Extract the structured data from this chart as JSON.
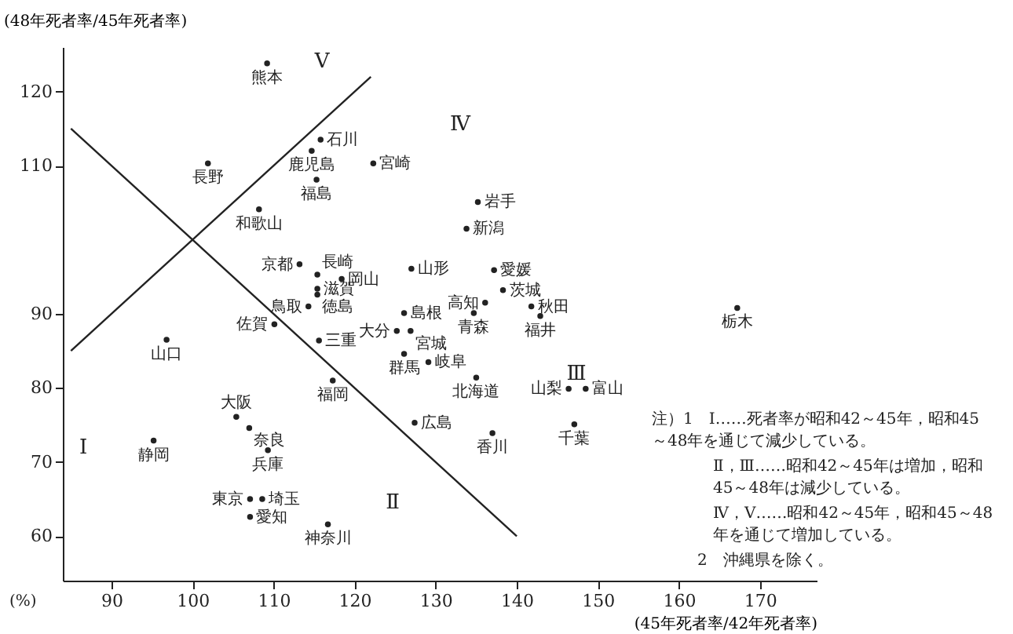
{
  "chart_data": {
    "type": "scatter",
    "xlabel": "(45年死者率/42年死者率)",
    "ylabel": "(48年死者率/45年死者率)",
    "xlim": [
      84,
      177
    ],
    "ylim": [
      54,
      126
    ],
    "xticks": [
      90,
      100,
      110,
      120,
      130,
      140,
      150,
      160,
      170
    ],
    "yticks": [
      60,
      70,
      80,
      90,
      110,
      120
    ],
    "marker": "circle",
    "color": "#222222",
    "grid": false,
    "annotations": [
      "(%)",
      "Ⅰ",
      "Ⅱ",
      "Ⅲ",
      "Ⅳ",
      "Ⅴ",
      "注）1　Ⅰ……死者率が昭和42～45年，昭和45\n～48年を通じて減少している。",
      "Ⅱ，Ⅲ……昭和42～45年は増加，昭和\n45～48年は減少している。",
      "Ⅳ，Ⅴ……昭和42～45年，昭和45～48\n年を通じて増加している。",
      "2　沖縄県を除く。"
    ],
    "series": [
      {
        "type": "line",
        "marker": "none",
        "color": "#222222",
        "x": [
          85,
          122
        ],
        "values": [
          85,
          122
        ]
      },
      {
        "type": "line",
        "marker": "none",
        "color": "#222222",
        "x": [
          85,
          140
        ],
        "values": [
          115,
          60
        ]
      },
      {
        "name": "熊本",
        "x": [
          109.2
        ],
        "values": [
          123.8
        ]
      },
      {
        "name": "石川",
        "x": [
          115.8
        ],
        "values": [
          113.5
        ]
      },
      {
        "name": "鹿児島",
        "x": [
          114.7
        ],
        "values": [
          112.0
        ]
      },
      {
        "name": "宮崎",
        "x": [
          122.3
        ],
        "values": [
          110.3
        ]
      },
      {
        "name": "福島",
        "x": [
          115.3
        ],
        "values": [
          108.1
        ]
      },
      {
        "name": "和歌山",
        "x": [
          108.2
        ],
        "values": [
          104.1
        ]
      },
      {
        "name": "長野",
        "x": [
          101.9
        ],
        "values": [
          110.3
        ]
      },
      {
        "name": "岩手",
        "x": [
          135.2
        ],
        "values": [
          105.1
        ]
      },
      {
        "name": "新潟",
        "x": [
          133.8
        ],
        "values": [
          101.5
        ]
      },
      {
        "name": "京都",
        "x": [
          113.2
        ],
        "values": [
          96.7
        ]
      },
      {
        "name": "長崎",
        "x": [
          115.4
        ],
        "values": [
          95.3
        ]
      },
      {
        "name": "岡山",
        "x": [
          118.4
        ],
        "values": [
          94.7
        ]
      },
      {
        "name": "滋賀",
        "x": [
          115.4
        ],
        "values": [
          93.4
        ]
      },
      {
        "name": "徳島",
        "x": [
          115.4
        ],
        "values": [
          92.6
        ]
      },
      {
        "name": "鳥取",
        "x": [
          114.3
        ],
        "values": [
          91.0
        ]
      },
      {
        "name": "山形",
        "x": [
          127.0
        ],
        "values": [
          96.1
        ]
      },
      {
        "name": "愛媛",
        "x": [
          137.2
        ],
        "values": [
          95.9
        ]
      },
      {
        "name": "茨城",
        "x": [
          138.3
        ],
        "values": [
          93.2
        ]
      },
      {
        "name": "高知",
        "x": [
          136.1
        ],
        "values": [
          91.5
        ]
      },
      {
        "name": "秋田",
        "x": [
          141.8
        ],
        "values": [
          91.0
        ]
      },
      {
        "name": "福井",
        "x": [
          142.9
        ],
        "values": [
          89.7
        ]
      },
      {
        "name": "青森",
        "x": [
          134.7
        ],
        "values": [
          90.1
        ]
      },
      {
        "name": "島根",
        "x": [
          126.1
        ],
        "values": [
          90.1
        ]
      },
      {
        "name": "佐賀",
        "x": [
          110.1
        ],
        "values": [
          88.6
        ]
      },
      {
        "name": "大分",
        "x": [
          125.2
        ],
        "values": [
          87.7
        ]
      },
      {
        "name": "宮城",
        "x": [
          126.9
        ],
        "values": [
          87.7
        ]
      },
      {
        "name": "三重",
        "x": [
          115.6
        ],
        "values": [
          86.4
        ]
      },
      {
        "name": "群馬",
        "x": [
          126.1
        ],
        "values": [
          84.6
        ]
      },
      {
        "name": "岐阜",
        "x": [
          129.1
        ],
        "values": [
          83.5
        ]
      },
      {
        "name": "北海道",
        "x": [
          135.0
        ],
        "values": [
          81.4
        ]
      },
      {
        "name": "福岡",
        "x": [
          117.3
        ],
        "values": [
          81.0
        ]
      },
      {
        "name": "大阪",
        "x": [
          105.4
        ],
        "values": [
          76.1
        ]
      },
      {
        "name": "奈良",
        "x": [
          107.0
        ],
        "values": [
          74.6
        ]
      },
      {
        "name": "広島",
        "x": [
          127.4
        ],
        "values": [
          75.3
        ]
      },
      {
        "name": "香川",
        "x": [
          137.0
        ],
        "values": [
          73.9
        ]
      },
      {
        "name": "兵庫",
        "x": [
          109.3
        ],
        "values": [
          71.6
        ]
      },
      {
        "name": "静岡",
        "x": [
          95.2
        ],
        "values": [
          72.9
        ]
      },
      {
        "name": "山口",
        "x": [
          96.8
        ],
        "values": [
          86.5
        ]
      },
      {
        "name": "東京",
        "x": [
          107.1
        ],
        "values": [
          65.0
        ]
      },
      {
        "name": "埼玉",
        "x": [
          108.6
        ],
        "values": [
          65.0
        ]
      },
      {
        "name": "愛知",
        "x": [
          107.1
        ],
        "values": [
          62.6
        ]
      },
      {
        "name": "神奈川",
        "x": [
          116.7
        ],
        "values": [
          61.6
        ]
      },
      {
        "name": "山梨",
        "x": [
          146.4
        ],
        "values": [
          79.9
        ]
      },
      {
        "name": "富山",
        "x": [
          148.5
        ],
        "values": [
          79.9
        ]
      },
      {
        "name": "千葉",
        "x": [
          147.1
        ],
        "values": [
          75.1
        ]
      },
      {
        "name": "栃木",
        "x": [
          167.2
        ],
        "values": [
          90.8
        ]
      }
    ]
  }
}
